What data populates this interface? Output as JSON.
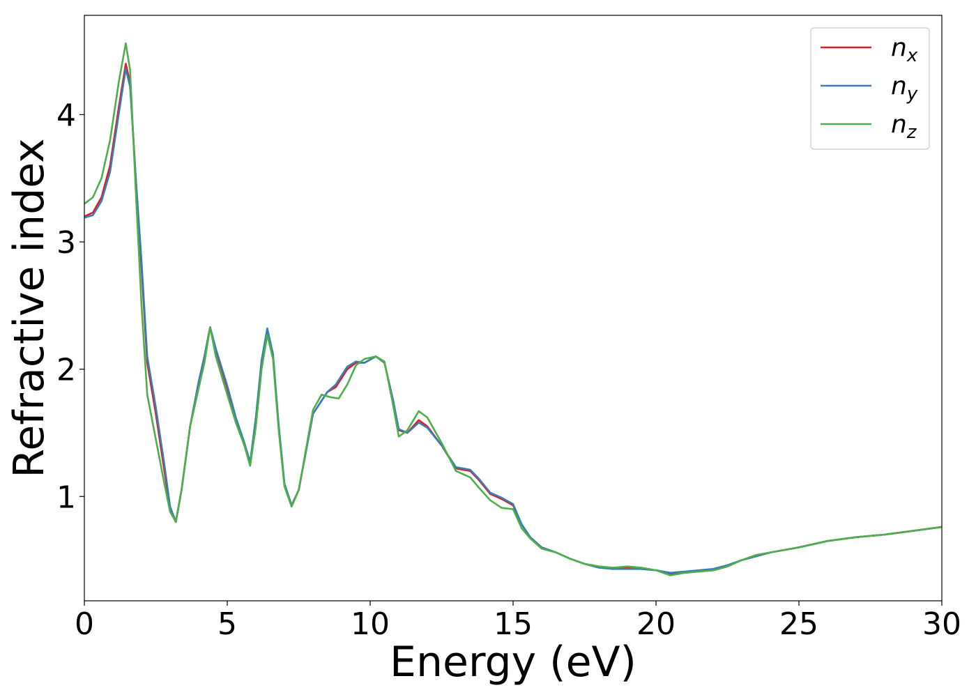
{
  "chart_data": {
    "type": "line",
    "xlabel": "Energy (eV)",
    "ylabel": "Refractive index",
    "xlim": [
      0,
      30
    ],
    "ylim": [
      0.18,
      4.78
    ],
    "xticks": [
      0,
      5,
      10,
      15,
      20,
      25,
      30
    ],
    "yticks": [
      1,
      2,
      3,
      4
    ],
    "grid": false,
    "legend_position": "top-right",
    "series": [
      {
        "name": "n_x",
        "label_main": "n",
        "label_sub": "x",
        "color": "#e41a1c",
        "points": [
          [
            0,
            3.2
          ],
          [
            0.3,
            3.23
          ],
          [
            0.6,
            3.35
          ],
          [
            0.9,
            3.6
          ],
          [
            1.2,
            4.05
          ],
          [
            1.45,
            4.4
          ],
          [
            1.6,
            4.25
          ],
          [
            1.8,
            3.5
          ],
          [
            2.0,
            2.8
          ],
          [
            2.2,
            2.05
          ],
          [
            2.5,
            1.65
          ],
          [
            2.8,
            1.2
          ],
          [
            3.0,
            0.9
          ],
          [
            3.2,
            0.8
          ],
          [
            3.4,
            1.05
          ],
          [
            3.7,
            1.55
          ],
          [
            4.0,
            1.9
          ],
          [
            4.2,
            2.1
          ],
          [
            4.4,
            2.33
          ],
          [
            4.6,
            2.15
          ],
          [
            5.0,
            1.85
          ],
          [
            5.3,
            1.6
          ],
          [
            5.6,
            1.4
          ],
          [
            5.8,
            1.25
          ],
          [
            6.0,
            1.6
          ],
          [
            6.2,
            2.05
          ],
          [
            6.4,
            2.3
          ],
          [
            6.6,
            2.1
          ],
          [
            6.8,
            1.55
          ],
          [
            7.0,
            1.1
          ],
          [
            7.25,
            0.93
          ],
          [
            7.5,
            1.05
          ],
          [
            8.0,
            1.65
          ],
          [
            8.5,
            1.82
          ],
          [
            8.8,
            1.86
          ],
          [
            9.2,
            2.0
          ],
          [
            9.5,
            2.05
          ],
          [
            9.8,
            2.05
          ],
          [
            10.2,
            2.1
          ],
          [
            10.5,
            2.05
          ],
          [
            10.8,
            1.75
          ],
          [
            11.0,
            1.52
          ],
          [
            11.3,
            1.5
          ],
          [
            11.7,
            1.6
          ],
          [
            12.0,
            1.55
          ],
          [
            12.5,
            1.4
          ],
          [
            13.0,
            1.22
          ],
          [
            13.5,
            1.2
          ],
          [
            13.8,
            1.13
          ],
          [
            14.2,
            1.02
          ],
          [
            14.6,
            0.98
          ],
          [
            15.0,
            0.93
          ],
          [
            15.3,
            0.78
          ],
          [
            15.6,
            0.68
          ],
          [
            16.0,
            0.6
          ],
          [
            16.5,
            0.56
          ],
          [
            17.0,
            0.51
          ],
          [
            17.5,
            0.47
          ],
          [
            18.0,
            0.45
          ],
          [
            18.5,
            0.43
          ],
          [
            19.0,
            0.44
          ],
          [
            19.5,
            0.43
          ],
          [
            20.0,
            0.42
          ],
          [
            20.5,
            0.39
          ],
          [
            21.0,
            0.4
          ],
          [
            21.5,
            0.41
          ],
          [
            22.0,
            0.42
          ],
          [
            22.5,
            0.45
          ],
          [
            23.0,
            0.5
          ],
          [
            23.5,
            0.53
          ],
          [
            24.0,
            0.56
          ],
          [
            25.0,
            0.6
          ],
          [
            26.0,
            0.65
          ],
          [
            27.0,
            0.68
          ],
          [
            28.0,
            0.7
          ],
          [
            29.0,
            0.73
          ],
          [
            30.0,
            0.76
          ]
        ]
      },
      {
        "name": "n_y",
        "label_main": "n",
        "label_sub": "y",
        "color": "#377eb8",
        "points": [
          [
            0,
            3.19
          ],
          [
            0.3,
            3.21
          ],
          [
            0.6,
            3.32
          ],
          [
            0.9,
            3.55
          ],
          [
            1.2,
            4.0
          ],
          [
            1.45,
            4.36
          ],
          [
            1.6,
            4.22
          ],
          [
            1.8,
            3.5
          ],
          [
            2.0,
            2.85
          ],
          [
            2.2,
            2.1
          ],
          [
            2.5,
            1.7
          ],
          [
            2.8,
            1.25
          ],
          [
            3.0,
            0.92
          ],
          [
            3.2,
            0.8
          ],
          [
            3.4,
            1.05
          ],
          [
            3.7,
            1.55
          ],
          [
            4.0,
            1.9
          ],
          [
            4.2,
            2.1
          ],
          [
            4.4,
            2.33
          ],
          [
            4.6,
            2.16
          ],
          [
            5.0,
            1.87
          ],
          [
            5.3,
            1.62
          ],
          [
            5.6,
            1.42
          ],
          [
            5.8,
            1.27
          ],
          [
            6.0,
            1.62
          ],
          [
            6.2,
            2.07
          ],
          [
            6.4,
            2.32
          ],
          [
            6.6,
            2.12
          ],
          [
            6.8,
            1.56
          ],
          [
            7.0,
            1.1
          ],
          [
            7.25,
            0.93
          ],
          [
            7.5,
            1.05
          ],
          [
            8.0,
            1.65
          ],
          [
            8.5,
            1.82
          ],
          [
            8.8,
            1.88
          ],
          [
            9.2,
            2.02
          ],
          [
            9.5,
            2.06
          ],
          [
            9.8,
            2.05
          ],
          [
            10.2,
            2.1
          ],
          [
            10.5,
            2.05
          ],
          [
            10.8,
            1.76
          ],
          [
            11.0,
            1.53
          ],
          [
            11.3,
            1.5
          ],
          [
            11.7,
            1.58
          ],
          [
            12.0,
            1.54
          ],
          [
            12.5,
            1.4
          ],
          [
            13.0,
            1.23
          ],
          [
            13.5,
            1.21
          ],
          [
            13.8,
            1.14
          ],
          [
            14.2,
            1.03
          ],
          [
            14.6,
            0.99
          ],
          [
            15.0,
            0.94
          ],
          [
            15.3,
            0.78
          ],
          [
            15.6,
            0.68
          ],
          [
            16.0,
            0.6
          ],
          [
            16.5,
            0.56
          ],
          [
            17.0,
            0.51
          ],
          [
            17.5,
            0.47
          ],
          [
            18.0,
            0.44
          ],
          [
            18.5,
            0.43
          ],
          [
            19.0,
            0.43
          ],
          [
            19.5,
            0.43
          ],
          [
            20.0,
            0.42
          ],
          [
            20.5,
            0.4
          ],
          [
            21.0,
            0.41
          ],
          [
            21.5,
            0.42
          ],
          [
            22.0,
            0.43
          ],
          [
            22.5,
            0.46
          ],
          [
            23.0,
            0.5
          ],
          [
            23.5,
            0.53
          ],
          [
            24.0,
            0.56
          ],
          [
            25.0,
            0.6
          ],
          [
            26.0,
            0.65
          ],
          [
            27.0,
            0.68
          ],
          [
            28.0,
            0.7
          ],
          [
            29.0,
            0.73
          ],
          [
            30.0,
            0.76
          ]
        ]
      },
      {
        "name": "n_z",
        "label_main": "n",
        "label_sub": "z",
        "color": "#4daf4a",
        "points": [
          [
            0,
            3.3
          ],
          [
            0.3,
            3.35
          ],
          [
            0.6,
            3.5
          ],
          [
            0.9,
            3.8
          ],
          [
            1.2,
            4.25
          ],
          [
            1.45,
            4.56
          ],
          [
            1.6,
            4.35
          ],
          [
            1.8,
            3.4
          ],
          [
            2.0,
            2.5
          ],
          [
            2.2,
            1.8
          ],
          [
            2.5,
            1.45
          ],
          [
            2.8,
            1.1
          ],
          [
            3.0,
            0.88
          ],
          [
            3.2,
            0.8
          ],
          [
            3.4,
            1.05
          ],
          [
            3.7,
            1.55
          ],
          [
            4.0,
            1.85
          ],
          [
            4.2,
            2.05
          ],
          [
            4.4,
            2.33
          ],
          [
            4.6,
            2.1
          ],
          [
            5.0,
            1.8
          ],
          [
            5.3,
            1.58
          ],
          [
            5.6,
            1.4
          ],
          [
            5.8,
            1.24
          ],
          [
            6.0,
            1.55
          ],
          [
            6.2,
            2.0
          ],
          [
            6.4,
            2.27
          ],
          [
            6.6,
            2.08
          ],
          [
            6.8,
            1.52
          ],
          [
            7.0,
            1.08
          ],
          [
            7.25,
            0.92
          ],
          [
            7.5,
            1.05
          ],
          [
            8.0,
            1.68
          ],
          [
            8.3,
            1.8
          ],
          [
            8.6,
            1.78
          ],
          [
            8.9,
            1.77
          ],
          [
            9.2,
            1.88
          ],
          [
            9.5,
            2.03
          ],
          [
            9.8,
            2.08
          ],
          [
            10.2,
            2.1
          ],
          [
            10.5,
            2.06
          ],
          [
            10.8,
            1.72
          ],
          [
            11.0,
            1.47
          ],
          [
            11.3,
            1.52
          ],
          [
            11.7,
            1.67
          ],
          [
            12.0,
            1.62
          ],
          [
            12.5,
            1.42
          ],
          [
            13.0,
            1.2
          ],
          [
            13.5,
            1.15
          ],
          [
            13.8,
            1.07
          ],
          [
            14.2,
            0.97
          ],
          [
            14.6,
            0.91
          ],
          [
            15.0,
            0.9
          ],
          [
            15.3,
            0.75
          ],
          [
            15.6,
            0.67
          ],
          [
            16.0,
            0.59
          ],
          [
            16.5,
            0.56
          ],
          [
            17.0,
            0.51
          ],
          [
            17.5,
            0.47
          ],
          [
            18.0,
            0.45
          ],
          [
            18.5,
            0.44
          ],
          [
            19.0,
            0.45
          ],
          [
            19.5,
            0.44
          ],
          [
            20.0,
            0.42
          ],
          [
            20.5,
            0.38
          ],
          [
            21.0,
            0.4
          ],
          [
            21.5,
            0.41
          ],
          [
            22.0,
            0.42
          ],
          [
            22.5,
            0.45
          ],
          [
            23.0,
            0.5
          ],
          [
            23.5,
            0.54
          ],
          [
            24.0,
            0.56
          ],
          [
            25.0,
            0.6
          ],
          [
            26.0,
            0.65
          ],
          [
            27.0,
            0.68
          ],
          [
            28.0,
            0.7
          ],
          [
            29.0,
            0.73
          ],
          [
            30.0,
            0.76
          ]
        ]
      }
    ]
  }
}
